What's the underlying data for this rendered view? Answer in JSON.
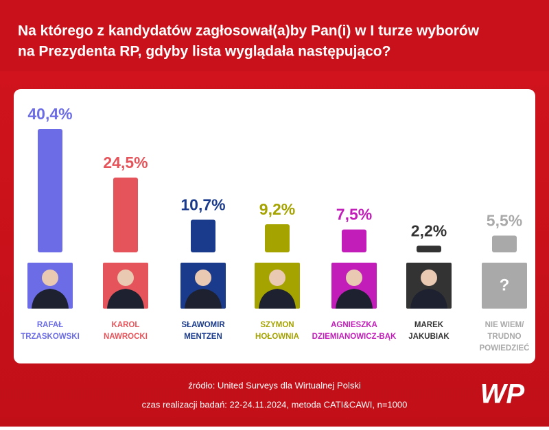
{
  "chart_data": {
    "type": "bar",
    "title": [
      "Na którego z kandydatów zagłosował(a)by Pan(i) w I turze wyborów",
      "na Prezydenta RP, gdyby lista wyglądała następująco?"
    ],
    "categories": [
      [
        "RAFAŁ",
        "TRZASKOWSKI"
      ],
      [
        "KAROL",
        "NAWROCKI"
      ],
      [
        "SŁAWOMIR",
        "MENTZEN"
      ],
      [
        "SZYMON",
        "HOŁOWNIA"
      ],
      [
        "AGNIESZKA",
        "DZIEMIANOWICZ-BĄK"
      ],
      [
        "MAREK",
        "JAKUBIAK"
      ],
      [
        "NIE WIEM/",
        "TRUDNO",
        "POWIEDZIEĆ"
      ]
    ],
    "values": [
      40.4,
      24.5,
      10.7,
      9.2,
      7.5,
      2.2,
      5.5
    ],
    "value_labels": [
      "40,4%",
      "24,5%",
      "10,7%",
      "9,2%",
      "7,5%",
      "2,2%",
      "5,5%"
    ],
    "colors": [
      "#6b6ce6",
      "#e5545a",
      "#1a3a8c",
      "#a5a300",
      "#c21db9",
      "#333333",
      "#a9a9a9"
    ],
    "placeholder_label": "?",
    "source": "źródło: United Surveys dla Wirtualnej Polski",
    "note": "czas realizacji badań: 22-24.11.2024, metoda CATI&CAWI, n=1000",
    "logo": "WP"
  }
}
